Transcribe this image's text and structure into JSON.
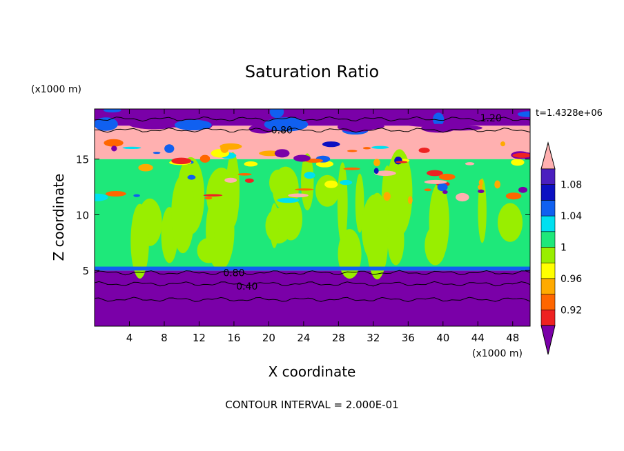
{
  "chart_data": {
    "type": "heatmap",
    "title": "Saturation Ratio",
    "xlabel": "X coordinate",
    "ylabel": "Z coordinate",
    "x_unit": "(x1000 m)",
    "y_unit": "(x1000 m)",
    "time_label": "t=1.4328e+06",
    "contour_interval_label": "CONTOUR INTERVAL = 2.000E-01",
    "xlim": [
      0,
      50
    ],
    "ylim": [
      0,
      19.5
    ],
    "x_ticks": [
      4,
      8,
      12,
      16,
      20,
      24,
      28,
      32,
      36,
      40,
      44,
      48
    ],
    "y_ticks": [
      5,
      10,
      15
    ],
    "contour_labels": [
      {
        "text": "0.80",
        "x": 21.5,
        "z": 17.6
      },
      {
        "text": "1.20",
        "x": 45.5,
        "z": 18.7
      },
      {
        "text": "0.80",
        "x": 16.0,
        "z": 4.8
      },
      {
        "text": "0.40",
        "x": 17.5,
        "z": 3.6
      }
    ],
    "colorbar": {
      "levels": [
        0.92,
        0.94,
        0.96,
        0.98,
        1.0,
        1.02,
        1.04,
        1.06,
        1.08,
        1.1
      ],
      "tick_labels": [
        "0.92",
        "0.96",
        "1",
        "1.04",
        "1.08"
      ],
      "colors": [
        "#7a00a8",
        "#4a1fbf",
        "#0b10c2",
        "#1060f0",
        "#00e0f0",
        "#1ee87a",
        "#99ee00",
        "#ffff00",
        "#ffaa00",
        "#ff6600",
        "#ee2222",
        "#ffb0b0"
      ],
      "extend": "both"
    },
    "layers": [
      {
        "zmin": 0.0,
        "zmax": 5.0,
        "dominant_value": "< 0.92",
        "color": "#7a00a8"
      },
      {
        "zmin": 5.0,
        "zmax": 15.0,
        "dominant_value": "0.98 - 1.02",
        "color": "#1ee87a"
      },
      {
        "zmin": 15.0,
        "zmax": 18.0,
        "dominant_value": "> 1.10",
        "color": "#ffb0b0"
      },
      {
        "zmin": 18.0,
        "zmax": 19.5,
        "dominant_value": "< 0.92",
        "color": "#7a00a8"
      }
    ]
  }
}
